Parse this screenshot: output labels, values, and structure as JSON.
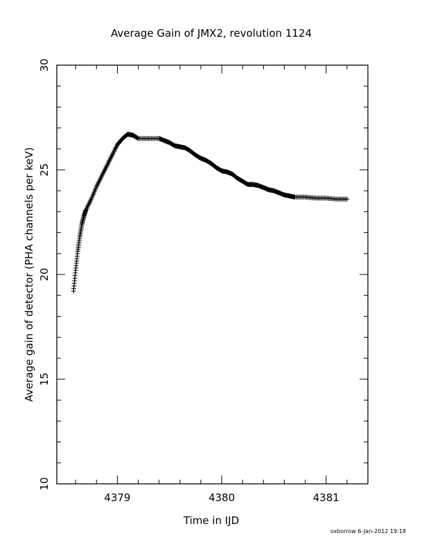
{
  "chart_data": {
    "type": "scatter",
    "title": "Average Gain of JMX2, revolution 1124",
    "xlabel": "Time in IJD",
    "ylabel": "Average gain of detector (PHA channels per keV)",
    "xlim": [
      4378.42,
      4381.4
    ],
    "ylim": [
      10,
      30
    ],
    "x_ticks": [
      "4379",
      "4380",
      "4381"
    ],
    "x_tick_values": [
      4379,
      4380,
      4381
    ],
    "y_ticks": [
      "10",
      "15",
      "20",
      "25",
      "30"
    ],
    "y_tick_values": [
      10,
      15,
      20,
      25,
      30
    ],
    "marker": "plus",
    "color": "#000000",
    "grid": false,
    "series": [
      {
        "x": [
          4378.58,
          4378.6,
          4378.62,
          4378.64,
          4378.66,
          4378.68,
          4378.7,
          4378.75,
          4378.8,
          4378.85,
          4378.9,
          4378.95,
          4379.0,
          4379.05,
          4379.1,
          4379.15,
          4379.2,
          4379.3,
          4379.4,
          4379.45,
          4379.5,
          4379.55,
          4379.6,
          4379.65,
          4379.7,
          4379.75,
          4379.8,
          4379.85,
          4379.9,
          4379.95,
          4380.0,
          4380.05,
          4380.1,
          4380.15,
          4380.2,
          4380.25,
          4380.3,
          4380.35,
          4380.4,
          4380.45,
          4380.5,
          4380.55,
          4380.6,
          4380.65,
          4380.7,
          4380.8,
          4380.9,
          4381.0,
          4381.1,
          4381.2
        ],
        "y": [
          19.2,
          20.2,
          21.1,
          21.8,
          22.4,
          22.8,
          23.1,
          23.6,
          24.2,
          24.7,
          25.2,
          25.7,
          26.2,
          26.5,
          26.7,
          26.65,
          26.5,
          26.5,
          26.5,
          26.4,
          26.3,
          26.15,
          26.1,
          26.05,
          25.9,
          25.7,
          25.55,
          25.45,
          25.3,
          25.1,
          24.95,
          24.9,
          24.8,
          24.6,
          24.45,
          24.3,
          24.3,
          24.25,
          24.15,
          24.05,
          24.0,
          23.9,
          23.8,
          23.75,
          23.7,
          23.7,
          23.65,
          23.65,
          23.6,
          23.6
        ]
      }
    ]
  },
  "footer": {
    "credit": "oxborrow   6-Jan-2012 19:18"
  }
}
